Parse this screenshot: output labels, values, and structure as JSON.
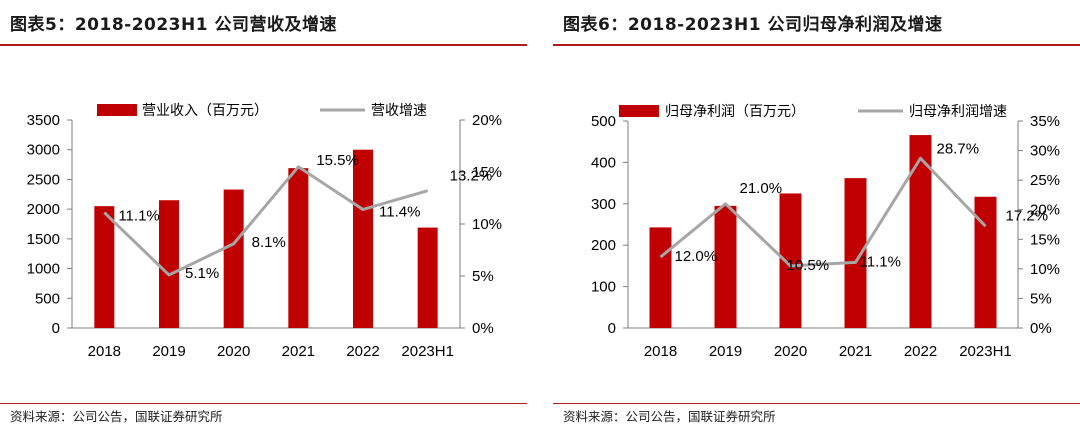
{
  "panels": [
    {
      "figure_title": "图表5：2018-2023H1 公司营收及增速",
      "source": "资料来源：公司公告，国联证券研究所",
      "chart_data": {
        "type": "bar",
        "categories": [
          "2018",
          "2019",
          "2020",
          "2021",
          "2022",
          "2023H1"
        ],
        "series": [
          {
            "name": "营业收入（百万元）",
            "type": "bar",
            "axis": "left",
            "values": [
              2050,
              2150,
              2330,
              2690,
              3000,
              1690
            ],
            "color": "#c00000"
          },
          {
            "name": "营收增速",
            "type": "line",
            "axis": "right",
            "values": [
              11.1,
              5.1,
              8.1,
              15.5,
              11.4,
              13.2
            ],
            "labels": [
              "11.1%",
              "5.1%",
              "8.1%",
              "15.5%",
              "11.4%",
              "13.2%"
            ],
            "color": "#a6a6a6"
          }
        ],
        "y_left": {
          "min": 0,
          "max": 3500,
          "ticks": [
            "0",
            "500",
            "1000",
            "1500",
            "2000",
            "2500",
            "3000",
            "3500"
          ]
        },
        "y_right": {
          "min": 0,
          "max": 20,
          "ticks": [
            "0%",
            "5%",
            "10%",
            "15%",
            "20%"
          ]
        },
        "legend_position": "top",
        "grid": false
      }
    },
    {
      "figure_title": "图表6：2018-2023H1 公司归母净利润及增速",
      "source": "资料来源：公司公告，国联证券研究所",
      "chart_data": {
        "type": "bar",
        "categories": [
          "2018",
          "2019",
          "2020",
          "2021",
          "2022",
          "2023H1"
        ],
        "series": [
          {
            "name": "归母净利润（百万元）",
            "type": "bar",
            "axis": "left",
            "values": [
              243,
              295,
              325,
              362,
              466,
              317
            ],
            "color": "#c00000"
          },
          {
            "name": "归母净利润增速",
            "type": "line",
            "axis": "right",
            "values": [
              12.0,
              21.0,
              10.5,
              11.1,
              28.7,
              17.2
            ],
            "labels": [
              "12.0%",
              "21.0%",
              "10.5%",
              "11.1%",
              "28.7%",
              "17.2%"
            ],
            "color": "#a6a6a6"
          }
        ],
        "y_left": {
          "min": 0,
          "max": 500,
          "ticks": [
            "0",
            "100",
            "200",
            "300",
            "400",
            "500"
          ]
        },
        "y_right": {
          "min": 0,
          "max": 35,
          "ticks": [
            "0%",
            "5%",
            "10%",
            "15%",
            "20%",
            "25%",
            "30%",
            "35%"
          ]
        },
        "legend_position": "top",
        "grid": false
      }
    }
  ]
}
